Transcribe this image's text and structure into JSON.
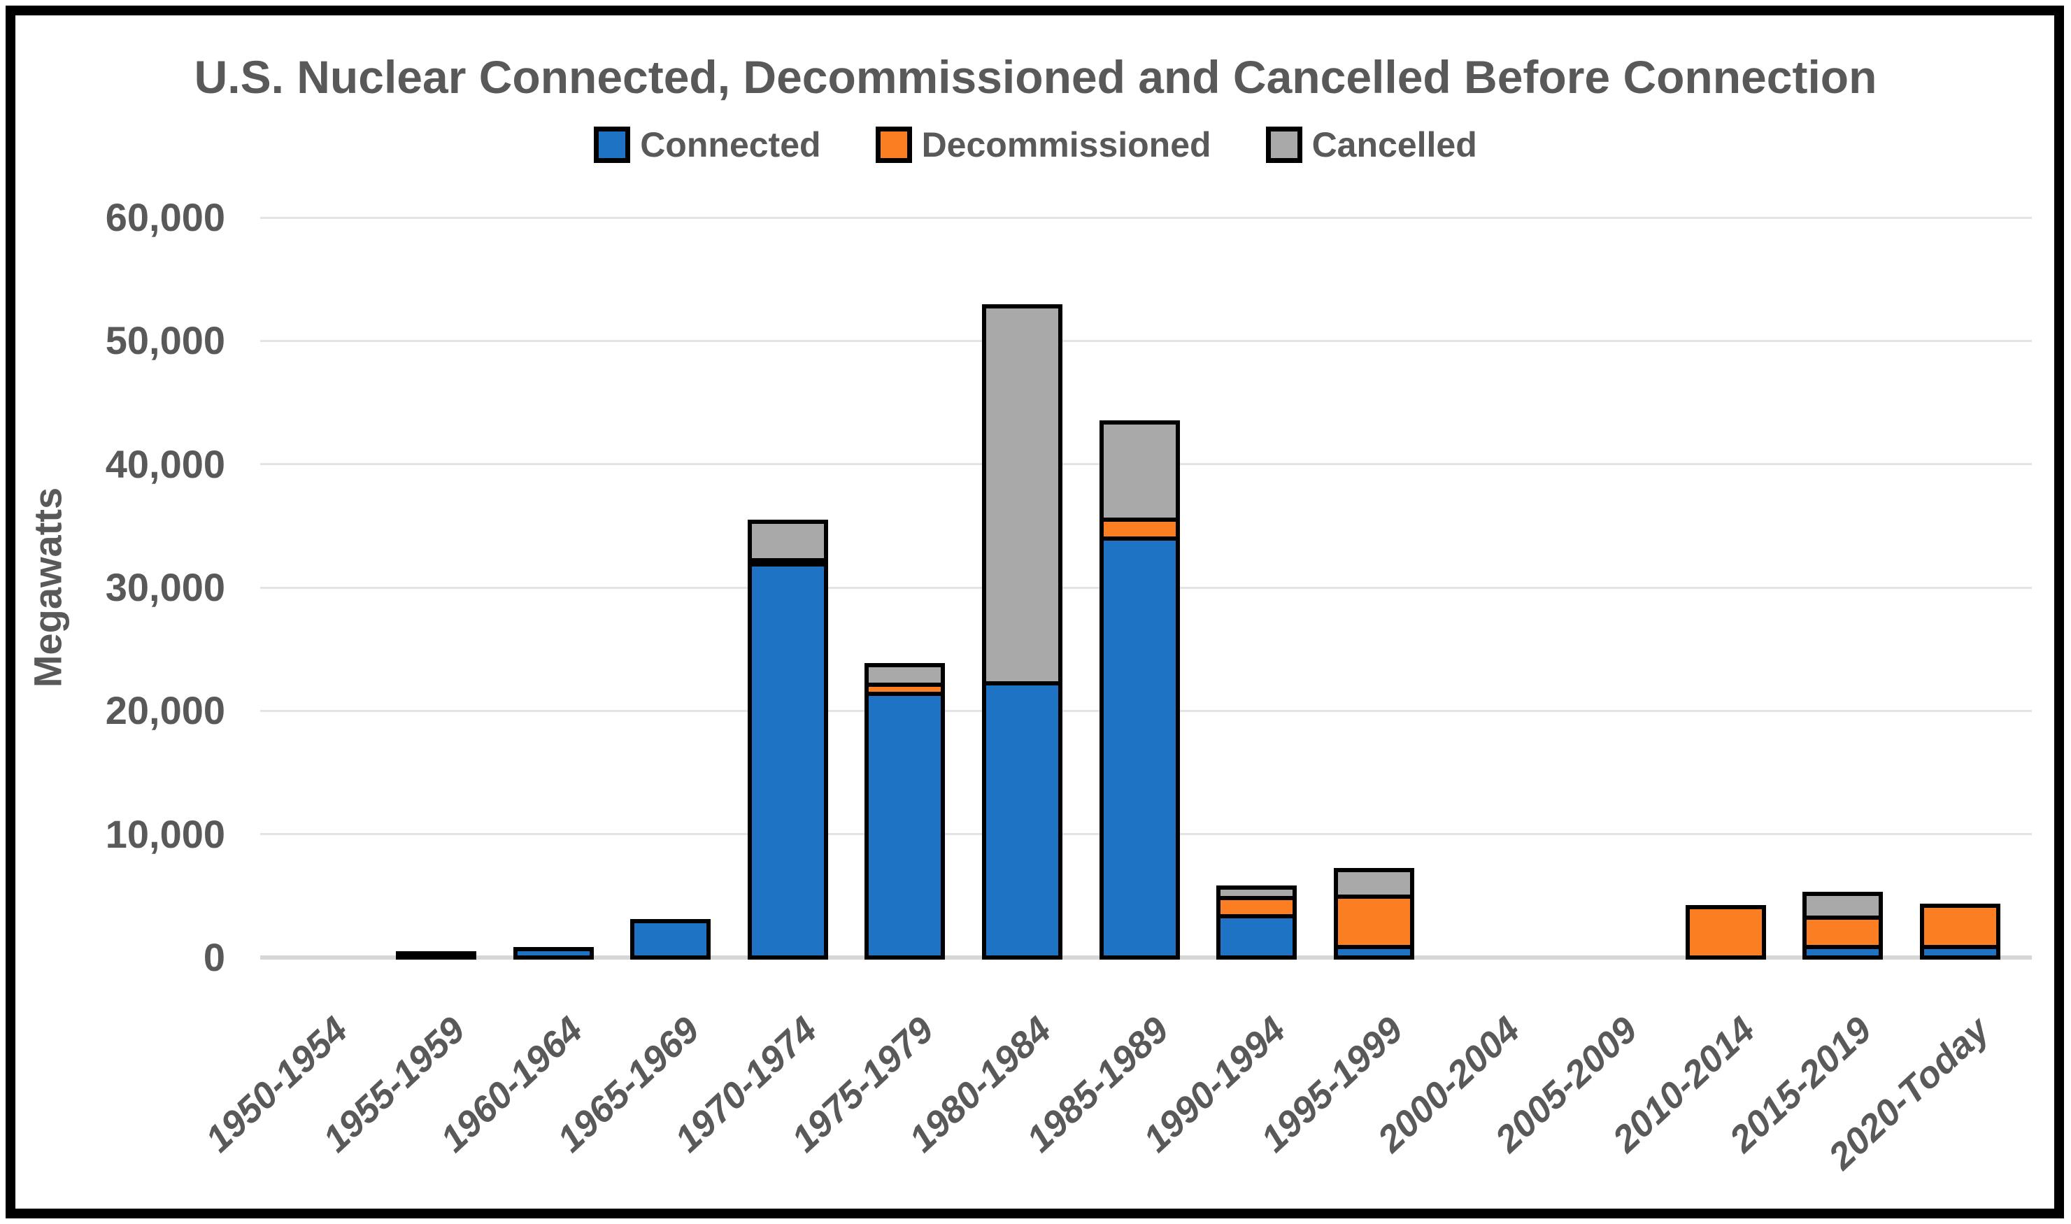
{
  "chart_data": {
    "type": "bar",
    "stacked": true,
    "title": "U.S. Nuclear Connected, Decommissioned and Cancelled Before Connection",
    "ylabel": "Megawatts",
    "ylim": [
      0,
      60000
    ],
    "ytick_step": 10000,
    "ytick_labels": [
      "0",
      "10,000",
      "20,000",
      "30,000",
      "40,000",
      "50,000",
      "60,000"
    ],
    "grid": true,
    "legend_position": "top-center",
    "categories": [
      "1950-1954",
      "1955-1959",
      "1960-1964",
      "1965-1969",
      "1970-1974",
      "1975-1979",
      "1980-1984",
      "1985-1989",
      "1990-1994",
      "1995-1999",
      "2000-2004",
      "2005-2009",
      "2010-2014",
      "2015-2019",
      "2020-Today"
    ],
    "series": [
      {
        "name": "Connected",
        "color": "#1E73C5",
        "values": [
          0,
          200,
          1000,
          3300,
          32200,
          21700,
          22600,
          34300,
          3700,
          1200,
          0,
          0,
          0,
          1200,
          1200
        ]
      },
      {
        "name": "Decommissioned",
        "color": "#FB7E23",
        "values": [
          0,
          0,
          0,
          0,
          400,
          1100,
          0,
          1900,
          1800,
          4400,
          0,
          0,
          4400,
          2700,
          3700
        ]
      },
      {
        "name": "Cancelled",
        "color": "#A9A9A9",
        "values": [
          0,
          0,
          0,
          0,
          3500,
          1900,
          30900,
          8200,
          1200,
          2500,
          0,
          0,
          0,
          2300,
          0
        ]
      }
    ],
    "colors": {
      "text": "#595959",
      "gridline": "#E4E4E4",
      "bar_outline": "#000000",
      "frame": "#000000"
    }
  }
}
